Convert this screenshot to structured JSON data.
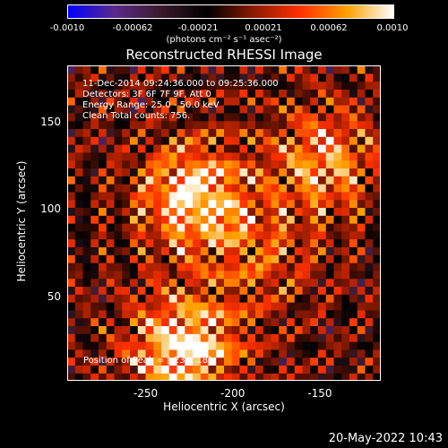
{
  "colorbar": {
    "ticks": [
      "-0.0010",
      "-0.00062",
      "-0.00021",
      "0.00021",
      "0.00062",
      "0.0010"
    ],
    "units": "(photons cm⁻² s⁻¹ asec⁻²)"
  },
  "title": "Reconstructed RHESSI Image",
  "info": {
    "time": "11-Dec-2014 09:24:36.000 to 09:25:36.000",
    "detectors": "Detectors: 3F 6F 7F 9F, Att 0",
    "energy": "Energy Range: 25.0 - 50.0 keV",
    "clean": "Clean     Total counts: 756."
  },
  "peak": "Position of Peak = [-234, 18]",
  "date": "20-May-2022 10:43",
  "chart_data": {
    "type": "heatmap",
    "xlabel": "Heliocentric X (arcsec)",
    "ylabel": "Heliocentric Y (arcsec)",
    "xlim": [
      -295,
      -115
    ],
    "ylim": [
      2,
      182
    ],
    "x_ticks": [
      "-250",
      "-200",
      "-150"
    ],
    "x_tick_values": [
      -250,
      -200,
      -150
    ],
    "y_ticks": [
      "50",
      "100",
      "150"
    ],
    "y_tick_values": [
      50,
      100,
      150
    ],
    "colormap": [
      "#0000ff",
      "#5a2a8c",
      "#3a1a2a",
      "#000000",
      "#8c1a00",
      "#ff3000",
      "#ffa000",
      "#ffffff"
    ],
    "clim": [
      -0.001,
      0.001
    ],
    "sources": [
      {
        "x": -225,
        "y": 105,
        "amplitude": 0.00095
      },
      {
        "x": -150,
        "y": 125,
        "amplitude": 0.0007
      },
      {
        "x": -230,
        "y": 18,
        "amplitude": 0.001
      },
      {
        "x": -185,
        "y": 70,
        "amplitude": 0.0004
      }
    ]
  }
}
